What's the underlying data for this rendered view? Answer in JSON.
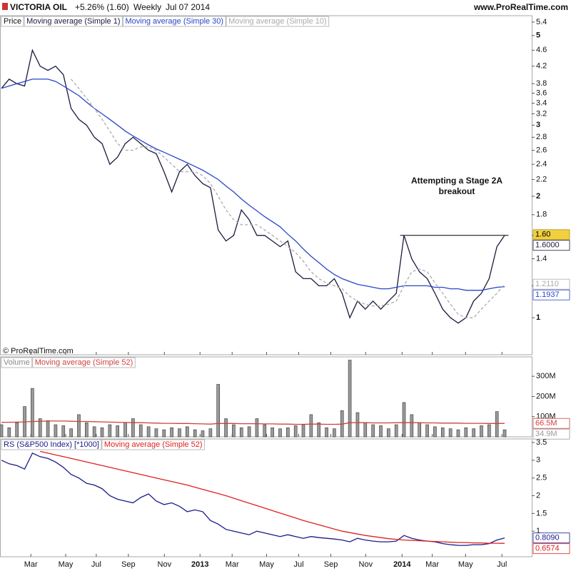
{
  "header": {
    "symbol": "VICTORIA OIL",
    "change": "+5.26% (1.60)",
    "period": "Weekly",
    "date": "Jul 07 2014",
    "site": "www.ProRealTime.com"
  },
  "copyright": "© ProRealTime.com",
  "chart_data": {
    "type": "line",
    "x": [
      0,
      2,
      4,
      6,
      8,
      10,
      12,
      14,
      16,
      18,
      20,
      22,
      24,
      26,
      28,
      30,
      32,
      34,
      36,
      38,
      40,
      42,
      44,
      46,
      48,
      50,
      52,
      54,
      56,
      58,
      60,
      62,
      64,
      66,
      68,
      70,
      72,
      74,
      76,
      78,
      80,
      82,
      84,
      86,
      88,
      90,
      92,
      94,
      96,
      98,
      100,
      102,
      104,
      106,
      108,
      110,
      112,
      114,
      116,
      118,
      120,
      122,
      124,
      126,
      128,
      130
    ],
    "xlim": [
      0,
      137
    ],
    "xticks": [
      {
        "value": 7.6,
        "label": "Mar"
      },
      {
        "value": 16.6,
        "label": "May"
      },
      {
        "value": 24.5,
        "label": "Jul"
      },
      {
        "value": 32.8,
        "label": "Sep"
      },
      {
        "value": 42.1,
        "label": "Nov"
      },
      {
        "value": 51.3,
        "label": "2013"
      },
      {
        "value": 59.6,
        "label": "Mar"
      },
      {
        "value": 68.5,
        "label": "May"
      },
      {
        "value": 76.8,
        "label": "Jul"
      },
      {
        "value": 85.1,
        "label": "Sep"
      },
      {
        "value": 94.1,
        "label": "Nov"
      },
      {
        "value": 103.5,
        "label": "2014"
      },
      {
        "value": 111.3,
        "label": "Mar"
      },
      {
        "value": 119.9,
        "label": "May"
      },
      {
        "value": 129.3,
        "label": "Jul"
      }
    ],
    "annotation": [
      "Attempting a Stage 2A",
      "breakout"
    ],
    "resistance": {
      "value": 1.6,
      "x": [
        103,
        131
      ]
    },
    "last_price_label": "1.60",
    "panels": [
      {
        "name": "Price",
        "log": true,
        "ylim": [
          0.81,
          5.6
        ],
        "yticks": [
          1,
          1.2,
          1.4,
          1.6,
          1.8,
          2,
          2.2,
          2.4,
          2.6,
          2.8,
          3,
          3.2,
          3.4,
          3.6,
          3.8,
          4.2,
          4.6,
          5,
          5.4
        ]
      },
      {
        "name": "Volume",
        "log": false,
        "ylim": [
          0,
          396
        ],
        "yticks": [
          {
            "value": 100,
            "label": "100M"
          },
          {
            "value": 200,
            "label": "200M"
          },
          {
            "value": 300,
            "label": "300M"
          }
        ]
      },
      {
        "name": "RS (S&P500 Index) [*1000]",
        "log": false,
        "ylim": [
          0.28,
          3.6
        ],
        "yticks": [
          1,
          1.5,
          2,
          2.5,
          3,
          3.5
        ]
      }
    ],
    "series": [
      {
        "name": "Moving average (Simple 1)",
        "panel": 0,
        "type": "line",
        "color": "#1a1a40",
        "last_label": "1.6000",
        "values": [
          3.7,
          3.9,
          3.8,
          3.75,
          4.6,
          4.2,
          4.1,
          4.2,
          4.0,
          3.3,
          3.1,
          3.0,
          2.8,
          2.7,
          2.4,
          2.5,
          2.7,
          2.8,
          2.7,
          2.6,
          2.55,
          2.3,
          2.05,
          2.3,
          2.4,
          2.25,
          2.15,
          2.1,
          1.65,
          1.55,
          1.6,
          1.85,
          1.75,
          1.6,
          1.6,
          1.55,
          1.5,
          1.55,
          1.3,
          1.25,
          1.25,
          1.2,
          1.2,
          1.25,
          1.15,
          1.0,
          1.1,
          1.05,
          1.1,
          1.05,
          1.1,
          1.15,
          1.6,
          1.4,
          1.3,
          1.25,
          1.15,
          1.05,
          1.0,
          0.97,
          1.0,
          1.1,
          1.15,
          1.25,
          1.5,
          1.6
        ]
      },
      {
        "name": "Moving average (Simple 30)",
        "panel": 0,
        "type": "line",
        "color": "#2a45c8",
        "last_label": "1.1937",
        "values": [
          3.7,
          3.75,
          3.8,
          3.85,
          3.9,
          3.9,
          3.9,
          3.85,
          3.75,
          3.65,
          3.55,
          3.42,
          3.3,
          3.2,
          3.1,
          3.0,
          2.9,
          2.82,
          2.75,
          2.68,
          2.62,
          2.57,
          2.52,
          2.47,
          2.42,
          2.37,
          2.32,
          2.26,
          2.2,
          2.12,
          2.05,
          1.97,
          1.9,
          1.84,
          1.78,
          1.73,
          1.68,
          1.61,
          1.55,
          1.48,
          1.42,
          1.37,
          1.32,
          1.28,
          1.25,
          1.23,
          1.21,
          1.2,
          1.19,
          1.18,
          1.18,
          1.19,
          1.2,
          1.2,
          1.2,
          1.2,
          1.19,
          1.19,
          1.18,
          1.18,
          1.17,
          1.17,
          1.17,
          1.18,
          1.19,
          1.1937
        ]
      },
      {
        "name": "Moving average (Simple 10)",
        "panel": 0,
        "type": "line",
        "color": "#aaaaaa",
        "dash": true,
        "last_label": "1.2110",
        "values": [
          null,
          null,
          null,
          null,
          null,
          null,
          null,
          null,
          null,
          3.9,
          3.7,
          3.5,
          3.3,
          3.1,
          2.9,
          2.7,
          2.6,
          2.6,
          2.65,
          2.65,
          2.6,
          2.5,
          2.4,
          2.3,
          2.3,
          2.3,
          2.25,
          2.15,
          2.0,
          1.85,
          1.75,
          1.7,
          1.7,
          1.7,
          1.65,
          1.6,
          1.55,
          1.5,
          1.45,
          1.38,
          1.3,
          1.25,
          1.22,
          1.2,
          1.18,
          1.13,
          1.1,
          1.08,
          1.07,
          1.07,
          1.08,
          1.1,
          1.2,
          1.3,
          1.32,
          1.3,
          1.22,
          1.15,
          1.08,
          1.02,
          1.0,
          1.0,
          1.05,
          1.1,
          1.15,
          1.211
        ]
      },
      {
        "name": "Volume",
        "panel": 1,
        "type": "bar",
        "color": "#9a9a9a",
        "last_label": "34.9M",
        "legend": false,
        "values": [
          60,
          45,
          70,
          150,
          240,
          90,
          80,
          60,
          55,
          40,
          110,
          70,
          50,
          45,
          60,
          55,
          70,
          90,
          60,
          50,
          40,
          35,
          45,
          40,
          50,
          35,
          30,
          40,
          260,
          90,
          60,
          45,
          50,
          90,
          60,
          45,
          40,
          45,
          55,
          60,
          110,
          70,
          45,
          40,
          130,
          380,
          120,
          70,
          60,
          55,
          40,
          60,
          170,
          110,
          70,
          60,
          50,
          45,
          40,
          35,
          45,
          40,
          55,
          60,
          125,
          34.9
        ]
      },
      {
        "name": "Moving average (Simple 52)",
        "panel": 1,
        "type": "line",
        "color": "#d04040",
        "last_label": "66.5M",
        "values": [
          72,
          72,
          73,
          74,
          76,
          77,
          78,
          78,
          78,
          77,
          76,
          76,
          75,
          74,
          73,
          72,
          71,
          70,
          70,
          69,
          68,
          67,
          67,
          66,
          66,
          65,
          64,
          63,
          66,
          66,
          66,
          65,
          65,
          65,
          64,
          64,
          63,
          63,
          62,
          62,
          63,
          63,
          62,
          62,
          63,
          70,
          70,
          70,
          69,
          69,
          69,
          70,
          70,
          70,
          70,
          69,
          69,
          68,
          68,
          68,
          67,
          67,
          67,
          66,
          66,
          66.5
        ]
      },
      {
        "name": "RS (S&P500 Index) [*1000]",
        "panel": 2,
        "type": "line",
        "color": "#1a1a8a",
        "last_label": "0.8090",
        "legend": false,
        "values": [
          3.0,
          2.9,
          2.85,
          2.75,
          3.2,
          3.1,
          3.05,
          2.95,
          2.8,
          2.6,
          2.5,
          2.35,
          2.3,
          2.2,
          2.0,
          1.9,
          1.85,
          1.8,
          1.95,
          2.05,
          1.85,
          1.75,
          1.8,
          1.7,
          1.55,
          1.6,
          1.55,
          1.3,
          1.2,
          1.05,
          1.0,
          0.95,
          0.9,
          1.0,
          0.95,
          0.9,
          0.85,
          0.9,
          0.85,
          0.8,
          0.85,
          0.82,
          0.8,
          0.78,
          0.75,
          0.7,
          0.8,
          0.75,
          0.72,
          0.7,
          0.7,
          0.72,
          0.88,
          0.8,
          0.75,
          0.72,
          0.7,
          0.65,
          0.62,
          0.6,
          0.6,
          0.62,
          0.62,
          0.65,
          0.75,
          0.809
        ]
      },
      {
        "name": "Moving average (Simple 52)",
        "panel": 2,
        "type": "line",
        "color": "#e02020",
        "last_label": "0.6574",
        "values": [
          null,
          null,
          null,
          null,
          null,
          3.25,
          3.2,
          3.15,
          3.1,
          3.05,
          3.0,
          2.95,
          2.9,
          2.85,
          2.8,
          2.75,
          2.7,
          2.65,
          2.6,
          2.55,
          2.5,
          2.45,
          2.4,
          2.35,
          2.3,
          2.24,
          2.18,
          2.12,
          2.06,
          2.0,
          1.93,
          1.86,
          1.79,
          1.72,
          1.65,
          1.58,
          1.51,
          1.44,
          1.37,
          1.3,
          1.24,
          1.18,
          1.12,
          1.06,
          1.0,
          0.96,
          0.92,
          0.88,
          0.85,
          0.82,
          0.79,
          0.77,
          0.75,
          0.74,
          0.73,
          0.72,
          0.71,
          0.7,
          0.69,
          0.68,
          0.68,
          0.67,
          0.67,
          0.66,
          0.66,
          0.6574
        ]
      }
    ]
  }
}
